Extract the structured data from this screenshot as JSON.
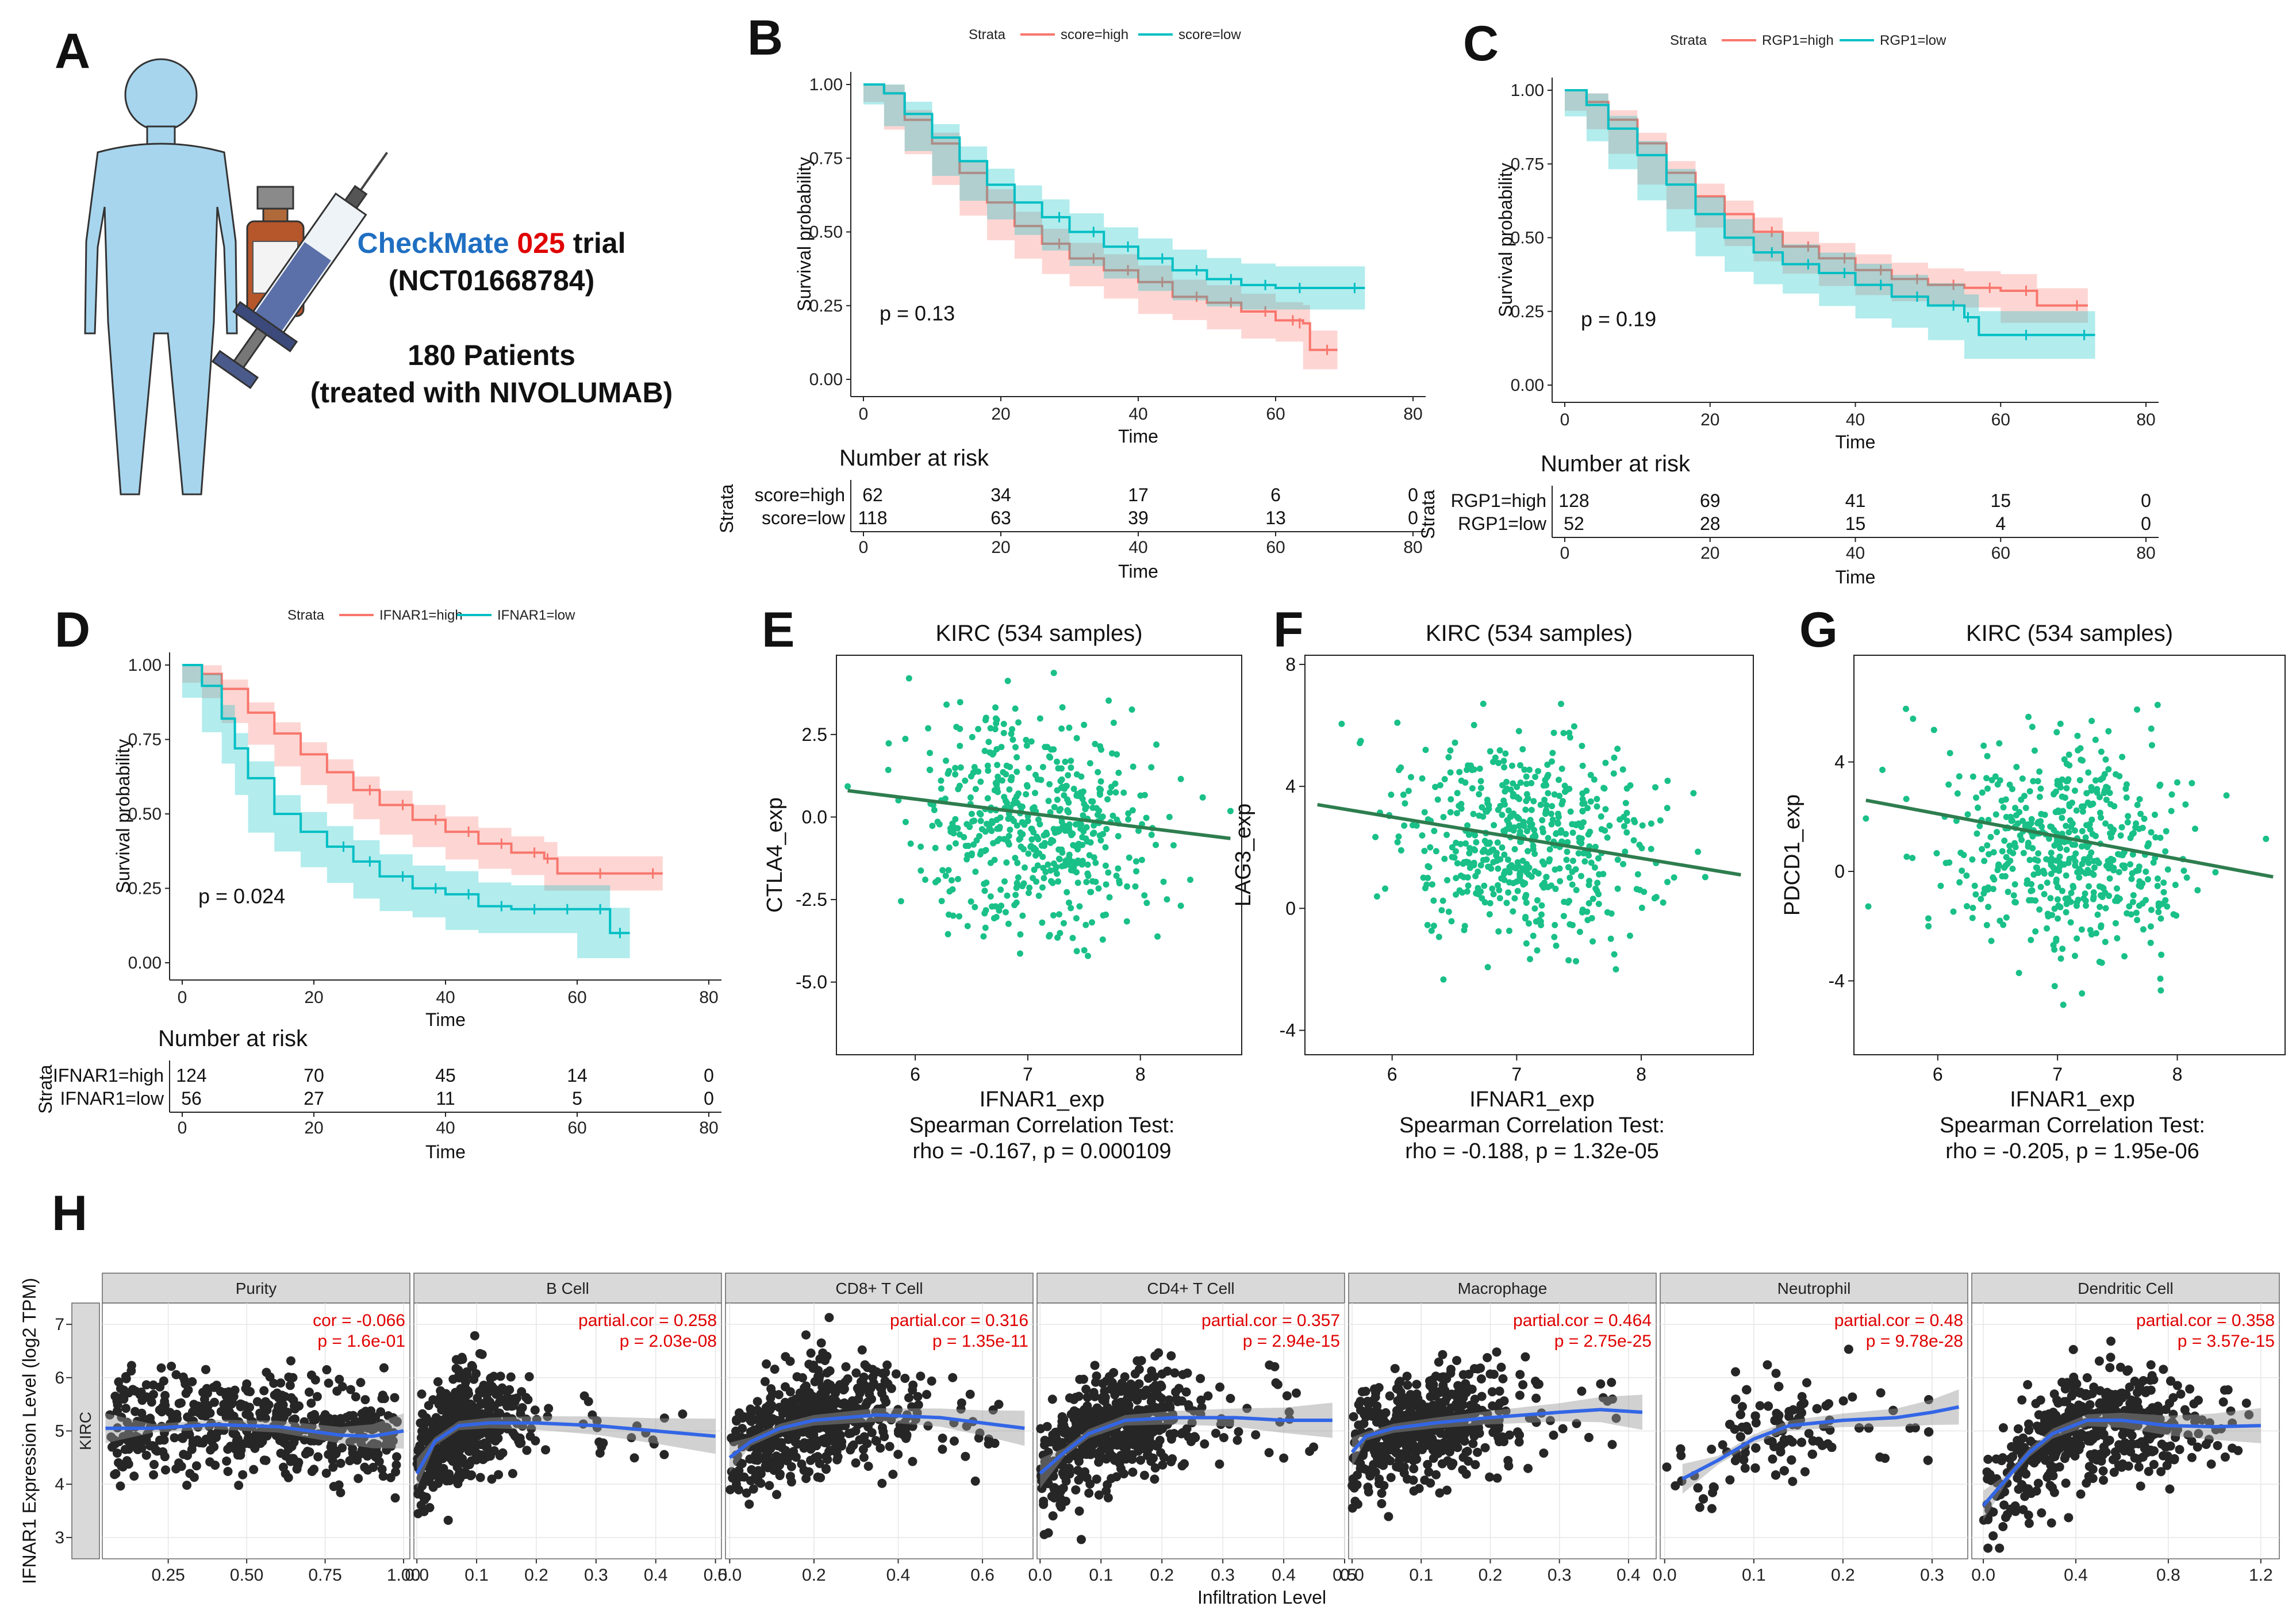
{
  "colors": {
    "high": "#f8766d",
    "low": "#00bfc4",
    "scatter": "#19c087",
    "fitline": "#2e7d4f",
    "loess": "#3366e6",
    "hdot": "#262626",
    "red": "#e00000",
    "blue": "#1f6fc2"
  },
  "panelA": {
    "label": "A",
    "trial_name_blue": "CheckMate",
    "trial_num_red": "025",
    "trial_word": "trial",
    "trial_id": "(NCT01668784)",
    "patients": "180 Patients",
    "treatment": "(treated with NIVOLUMAB)"
  },
  "km": [
    {
      "id": "B",
      "label": "B",
      "legend_title": "Strata",
      "high_label": "score=high",
      "low_label": "score=low",
      "ylabel": "Survival probability",
      "xlabel": "Time",
      "pvalue": "p = 0.13",
      "yticks": [
        "0.00",
        "0.25",
        "0.50",
        "0.75",
        "1.00"
      ],
      "xticks": [
        "0",
        "20",
        "40",
        "60",
        "80"
      ],
      "high_curve": [
        [
          0,
          1.0
        ],
        [
          3,
          0.97
        ],
        [
          6,
          0.88
        ],
        [
          10,
          0.8
        ],
        [
          14,
          0.7
        ],
        [
          18,
          0.6
        ],
        [
          22,
          0.52
        ],
        [
          26,
          0.46
        ],
        [
          30,
          0.41
        ],
        [
          35,
          0.37
        ],
        [
          40,
          0.33
        ],
        [
          45,
          0.28
        ],
        [
          50,
          0.26
        ],
        [
          55,
          0.23
        ],
        [
          60,
          0.2
        ],
        [
          64,
          0.19
        ],
        [
          65,
          0.1
        ],
        [
          69,
          0.1
        ]
      ],
      "low_curve": [
        [
          0,
          1.0
        ],
        [
          3,
          0.97
        ],
        [
          6,
          0.9
        ],
        [
          10,
          0.82
        ],
        [
          14,
          0.74
        ],
        [
          18,
          0.66
        ],
        [
          22,
          0.6
        ],
        [
          26,
          0.55
        ],
        [
          30,
          0.5
        ],
        [
          35,
          0.45
        ],
        [
          40,
          0.41
        ],
        [
          45,
          0.37
        ],
        [
          50,
          0.34
        ],
        [
          55,
          0.32
        ],
        [
          60,
          0.31
        ],
        [
          65,
          0.31
        ],
        [
          73,
          0.31
        ]
      ],
      "risk_title": "Number at risk",
      "risk_strata": "Strata",
      "risk_high_label": "score=high",
      "risk_low_label": "score=low",
      "risk_high": [
        "62",
        "34",
        "17",
        "6",
        "0"
      ],
      "risk_low": [
        "118",
        "63",
        "39",
        "13",
        "0"
      ],
      "risk_xlabel": "Time"
    },
    {
      "id": "C",
      "label": "C",
      "legend_title": "Strata",
      "high_label": "RGP1=high",
      "low_label": "RGP1=low",
      "ylabel": "Survival probability",
      "xlabel": "Time",
      "pvalue": "p = 0.19",
      "yticks": [
        "0.00",
        "0.25",
        "0.50",
        "0.75",
        "1.00"
      ],
      "xticks": [
        "0",
        "20",
        "40",
        "60",
        "80"
      ],
      "high_curve": [
        [
          0,
          1.0
        ],
        [
          3,
          0.96
        ],
        [
          6,
          0.9
        ],
        [
          10,
          0.82
        ],
        [
          14,
          0.72
        ],
        [
          18,
          0.64
        ],
        [
          22,
          0.58
        ],
        [
          26,
          0.52
        ],
        [
          30,
          0.47
        ],
        [
          35,
          0.43
        ],
        [
          40,
          0.39
        ],
        [
          45,
          0.36
        ],
        [
          50,
          0.34
        ],
        [
          55,
          0.33
        ],
        [
          60,
          0.32
        ],
        [
          65,
          0.27
        ],
        [
          72,
          0.27
        ]
      ],
      "low_curve": [
        [
          0,
          1.0
        ],
        [
          3,
          0.95
        ],
        [
          6,
          0.87
        ],
        [
          10,
          0.78
        ],
        [
          14,
          0.68
        ],
        [
          18,
          0.58
        ],
        [
          22,
          0.5
        ],
        [
          26,
          0.45
        ],
        [
          30,
          0.41
        ],
        [
          35,
          0.38
        ],
        [
          40,
          0.34
        ],
        [
          45,
          0.3
        ],
        [
          50,
          0.27
        ],
        [
          55,
          0.23
        ],
        [
          57,
          0.17
        ],
        [
          65,
          0.17
        ],
        [
          73,
          0.17
        ]
      ],
      "risk_title": "Number at risk",
      "risk_strata": "Strata",
      "risk_high_label": "RGP1=high",
      "risk_low_label": "RGP1=low",
      "risk_high": [
        "128",
        "69",
        "41",
        "15",
        "0"
      ],
      "risk_low": [
        "52",
        "28",
        "15",
        "4",
        "0"
      ],
      "risk_xlabel": "Time"
    },
    {
      "id": "D",
      "label": "D",
      "legend_title": "Strata",
      "high_label": "IFNAR1=high",
      "low_label": "IFNAR1=low",
      "ylabel": "Survival probability",
      "xlabel": "Time",
      "pvalue": "p = 0.024",
      "yticks": [
        "0.00",
        "0.25",
        "0.50",
        "0.75",
        "1.00"
      ],
      "xticks": [
        "0",
        "20",
        "40",
        "60",
        "80"
      ],
      "high_curve": [
        [
          0,
          1.0
        ],
        [
          3,
          0.97
        ],
        [
          6,
          0.92
        ],
        [
          10,
          0.84
        ],
        [
          14,
          0.77
        ],
        [
          18,
          0.7
        ],
        [
          22,
          0.64
        ],
        [
          26,
          0.58
        ],
        [
          30,
          0.53
        ],
        [
          35,
          0.48
        ],
        [
          40,
          0.44
        ],
        [
          45,
          0.4
        ],
        [
          50,
          0.37
        ],
        [
          55,
          0.35
        ],
        [
          57,
          0.3
        ],
        [
          65,
          0.3
        ],
        [
          73,
          0.3
        ]
      ],
      "low_curve": [
        [
          0,
          1.0
        ],
        [
          3,
          0.93
        ],
        [
          6,
          0.82
        ],
        [
          8,
          0.72
        ],
        [
          10,
          0.62
        ],
        [
          14,
          0.5
        ],
        [
          18,
          0.44
        ],
        [
          22,
          0.39
        ],
        [
          26,
          0.34
        ],
        [
          30,
          0.29
        ],
        [
          35,
          0.25
        ],
        [
          40,
          0.23
        ],
        [
          45,
          0.19
        ],
        [
          50,
          0.18
        ],
        [
          55,
          0.18
        ],
        [
          60,
          0.18
        ],
        [
          65,
          0.1
        ],
        [
          68,
          0.1
        ]
      ],
      "risk_title": "Number at risk",
      "risk_strata": "Strata",
      "risk_high_label": "IFNAR1=high",
      "risk_low_label": "IFNAR1=low",
      "risk_high": [
        "124",
        "70",
        "45",
        "14",
        "0"
      ],
      "risk_low": [
        "56",
        "27",
        "11",
        "5",
        "0"
      ],
      "risk_xlabel": "Time"
    }
  ],
  "scatter": [
    {
      "id": "E",
      "label": "E",
      "title": "KIRC (534 samples)",
      "ylabel": "CTLA4_exp",
      "xlabel": "IFNAR1_exp",
      "test": "Spearman Correlation Test:",
      "stat": "rho = -0.167, p = 0.000109",
      "xticks": [
        "6",
        "7",
        "8"
      ],
      "yticks": [
        "-5.0",
        "-2.5",
        "0.0",
        "2.5"
      ],
      "xmin": 5.3,
      "xmax": 8.9,
      "ymin": -7.2,
      "ymax": 4.9,
      "fit": [
        [
          5.4,
          0.8
        ],
        [
          8.8,
          -0.65
        ]
      ],
      "center": [
        7.05,
        -0.2
      ],
      "sd": [
        0.5,
        1.6
      ]
    },
    {
      "id": "F",
      "label": "F",
      "title": "KIRC (534 samples)",
      "ylabel": "LAG3_exp",
      "xlabel": "IFNAR1_exp",
      "test": "Spearman Correlation Test:",
      "stat": "rho = -0.188, p = 1.32e-05",
      "xticks": [
        "6",
        "7",
        "8"
      ],
      "yticks": [
        "-4",
        "0",
        "4",
        "8"
      ],
      "xmin": 5.3,
      "xmax": 8.9,
      "ymin": -4.8,
      "ymax": 8.3,
      "fit": [
        [
          5.4,
          3.4
        ],
        [
          8.8,
          1.1
        ]
      ],
      "center": [
        7.05,
        2.2
      ],
      "sd": [
        0.5,
        1.7
      ]
    },
    {
      "id": "G",
      "label": "G",
      "title": "KIRC (534 samples)",
      "ylabel": "PDCD1_exp",
      "xlabel": "IFNAR1_exp",
      "test": "Spearman Correlation Test:",
      "stat": "rho = -0.205, p = 1.95e-06",
      "xticks": [
        "6",
        "7",
        "8"
      ],
      "yticks": [
        "-4",
        "0",
        "4"
      ],
      "xmin": 5.3,
      "xmax": 8.9,
      "ymin": -6.7,
      "ymax": 7.9,
      "fit": [
        [
          5.4,
          2.6
        ],
        [
          8.8,
          -0.2
        ]
      ],
      "center": [
        7.05,
        0.9
      ],
      "sd": [
        0.5,
        1.9
      ]
    }
  ],
  "panelH": {
    "label": "H",
    "ylabel": "IFNAR1 Expression Level (log2 TPM)",
    "xlabel": "Infiltration Level",
    "strip": "KIRC",
    "yticks": [
      "3",
      "4",
      "5",
      "6",
      "7"
    ],
    "facets": [
      {
        "name": "Purity",
        "cor": "cor = -0.066",
        "p": "p = 1.6e-01",
        "xticks": [
          "0.25",
          "0.50",
          "0.75",
          "1.00"
        ],
        "xvals": [
          0.25,
          0.5,
          0.75,
          1.0
        ],
        "xmin": 0.04,
        "xmax": 1.02,
        "center": 0.55,
        "sd": 0.22,
        "loess": [
          [
            0.05,
            5.05
          ],
          [
            0.2,
            5.05
          ],
          [
            0.4,
            5.12
          ],
          [
            0.6,
            5.08
          ],
          [
            0.8,
            4.92
          ],
          [
            0.9,
            4.9
          ],
          [
            1.0,
            5.0
          ]
        ]
      },
      {
        "name": "B Cell",
        "cor": "partial.cor = 0.258",
        "p": "p = 2.03e-08",
        "xticks": [
          "0.0",
          "0.1",
          "0.2",
          "0.3",
          "0.4",
          "0.5"
        ],
        "xvals": [
          0,
          0.1,
          0.2,
          0.3,
          0.4,
          0.5
        ],
        "xmin": -0.005,
        "xmax": 0.51,
        "center": 0.08,
        "sd": 0.05,
        "loess": [
          [
            0.0,
            4.2
          ],
          [
            0.03,
            4.8
          ],
          [
            0.07,
            5.1
          ],
          [
            0.12,
            5.15
          ],
          [
            0.2,
            5.15
          ],
          [
            0.3,
            5.1
          ],
          [
            0.4,
            5.0
          ],
          [
            0.5,
            4.9
          ]
        ]
      },
      {
        "name": "CD8+ T Cell",
        "cor": "partial.cor = 0.316",
        "p": "p = 1.35e-11",
        "xticks": [
          "0.0",
          "0.2",
          "0.4",
          "0.6"
        ],
        "xvals": [
          0,
          0.2,
          0.4,
          0.6
        ],
        "xmin": -0.01,
        "xmax": 0.72,
        "center": 0.2,
        "sd": 0.12,
        "loess": [
          [
            0.0,
            4.5
          ],
          [
            0.05,
            4.8
          ],
          [
            0.12,
            5.05
          ],
          [
            0.2,
            5.2
          ],
          [
            0.35,
            5.3
          ],
          [
            0.5,
            5.25
          ],
          [
            0.6,
            5.15
          ],
          [
            0.7,
            5.05
          ]
        ]
      },
      {
        "name": "CD4+ T Cell",
        "cor": "partial.cor = 0.357",
        "p": "p = 2.94e-15",
        "xticks": [
          "0.0",
          "0.1",
          "0.2",
          "0.3",
          "0.4",
          "0.5"
        ],
        "xvals": [
          0,
          0.1,
          0.2,
          0.3,
          0.4,
          0.5
        ],
        "xmin": -0.005,
        "xmax": 0.5,
        "center": 0.12,
        "sd": 0.07,
        "loess": [
          [
            0.0,
            4.2
          ],
          [
            0.04,
            4.6
          ],
          [
            0.08,
            4.95
          ],
          [
            0.14,
            5.2
          ],
          [
            0.22,
            5.25
          ],
          [
            0.32,
            5.25
          ],
          [
            0.4,
            5.2
          ],
          [
            0.48,
            5.2
          ]
        ]
      },
      {
        "name": "Macrophage",
        "cor": "partial.cor = 0.464",
        "p": "p = 2.75e-25",
        "xticks": [
          "0.0",
          "0.1",
          "0.2",
          "0.3",
          "0.4"
        ],
        "xvals": [
          0,
          0.1,
          0.2,
          0.3,
          0.4
        ],
        "xmin": -0.005,
        "xmax": 0.44,
        "center": 0.1,
        "sd": 0.07,
        "loess": [
          [
            0.0,
            4.6
          ],
          [
            0.02,
            4.9
          ],
          [
            0.06,
            5.05
          ],
          [
            0.12,
            5.15
          ],
          [
            0.2,
            5.25
          ],
          [
            0.3,
            5.35
          ],
          [
            0.36,
            5.4
          ],
          [
            0.42,
            5.35
          ]
        ]
      },
      {
        "name": "Neutrophil",
        "cor": "partial.cor = 0.48",
        "p": "p = 9.78e-28",
        "xticks": [
          "0.0",
          "0.1",
          "0.2",
          "0.3"
        ],
        "xvals": [
          0,
          0.1,
          0.2,
          0.3
        ],
        "xmin": -0.005,
        "xmax": 0.34,
        "center": 0.13,
        "sd": 0.06,
        "loess": [
          [
            0.02,
            4.1
          ],
          [
            0.06,
            4.45
          ],
          [
            0.1,
            4.85
          ],
          [
            0.14,
            5.1
          ],
          [
            0.2,
            5.2
          ],
          [
            0.26,
            5.25
          ],
          [
            0.3,
            5.35
          ],
          [
            0.33,
            5.45
          ]
        ]
      },
      {
        "name": "Dendritic Cell",
        "cor": "partial.cor = 0.358",
        "p": "p = 3.57e-15",
        "xticks": [
          "0.0",
          "0.4",
          "0.8",
          "1.2"
        ],
        "xvals": [
          0,
          0.4,
          0.8,
          1.2
        ],
        "xmin": -0.05,
        "xmax": 1.28,
        "center": 0.45,
        "sd": 0.25,
        "loess": [
          [
            0.0,
            3.6
          ],
          [
            0.1,
            4.1
          ],
          [
            0.2,
            4.6
          ],
          [
            0.3,
            4.95
          ],
          [
            0.45,
            5.2
          ],
          [
            0.6,
            5.2
          ],
          [
            0.8,
            5.1
          ],
          [
            1.0,
            5.08
          ],
          [
            1.2,
            5.1
          ]
        ]
      }
    ]
  }
}
